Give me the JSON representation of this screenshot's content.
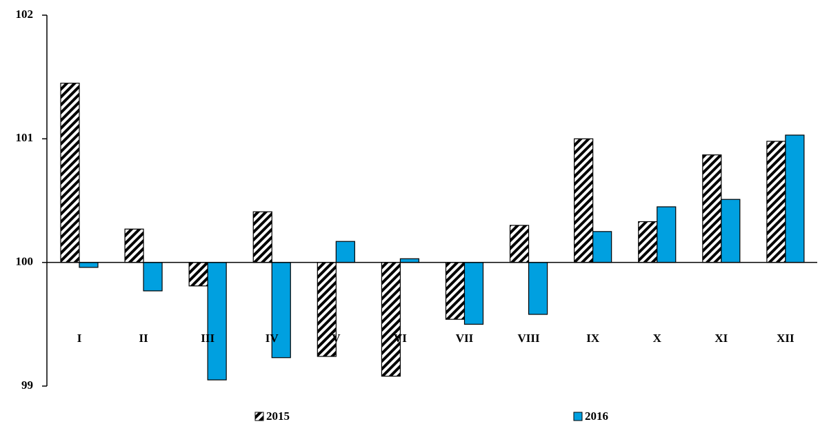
{
  "chart_data": {
    "type": "bar",
    "categories": [
      "I",
      "II",
      "III",
      "IV",
      "V",
      "VI",
      "VII",
      "VIII",
      "IX",
      "X",
      "XI",
      "XII"
    ],
    "series": [
      {
        "name": "2015",
        "color": "#000000",
        "pattern": "hatch",
        "values": [
          101.45,
          100.27,
          99.81,
          100.41,
          99.24,
          99.08,
          99.54,
          100.3,
          101.0,
          100.33,
          100.87,
          100.98
        ]
      },
      {
        "name": "2016",
        "color": "#00a0e0",
        "values": [
          99.96,
          99.77,
          99.05,
          99.23,
          100.17,
          100.03,
          99.5,
          99.58,
          100.25,
          100.45,
          100.51,
          101.03
        ]
      }
    ],
    "ylim": [
      99,
      102
    ],
    "yticks": [
      99,
      100,
      101,
      102
    ],
    "baseline": 100,
    "legend": "bottom"
  }
}
